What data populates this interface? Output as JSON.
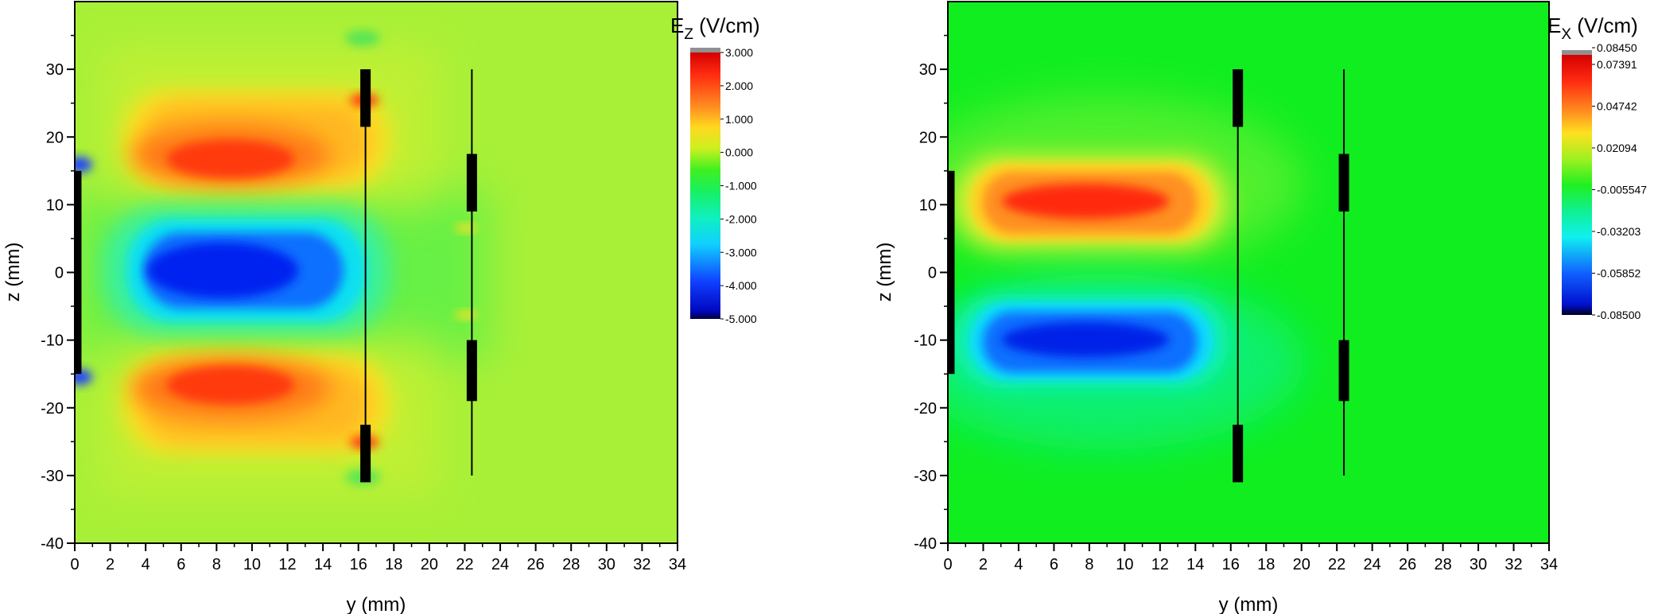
{
  "chart_data": [
    {
      "type": "heatmap",
      "quantity": "Ez",
      "colorbar_title_main": "E",
      "colorbar_title_sub": "Z",
      "colorbar_title_unit": " (V/cm)",
      "xlabel": "y (mm)",
      "ylabel": "z (mm)",
      "xlim": [
        0,
        34
      ],
      "ylim": [
        -40,
        40
      ],
      "x_ticks": [
        "0",
        "2",
        "4",
        "6",
        "8",
        "10",
        "12",
        "14",
        "16",
        "18",
        "20",
        "22",
        "24",
        "26",
        "28",
        "30",
        "32",
        "34"
      ],
      "y_ticks": [
        "-40",
        "-30",
        "-20",
        "-10",
        "0",
        "10",
        "20",
        "30"
      ],
      "colorbar_ticks": [
        "3.000",
        "2.000",
        "1.000",
        "0.000",
        "-1.000",
        "-2.000",
        "-3.000",
        "-4.000",
        "-5.000"
      ],
      "colorbar_range": [
        -5,
        3
      ],
      "field_regions": [
        {
          "kind": "positive-lobe",
          "y_center": 9,
          "z_center": 17,
          "peak": 2.6
        },
        {
          "kind": "negative-lobe",
          "y_center": 9,
          "z_center": 0,
          "peak": -4.6
        },
        {
          "kind": "positive-lobe",
          "y_center": 9,
          "z_center": -17,
          "peak": 2.6
        }
      ],
      "structures": {
        "left_plate": {
          "y": 0.2,
          "z_from": -15,
          "z_to": 15
        },
        "wire_1": {
          "y": 16.4,
          "z_from": -30,
          "z_to": 30
        },
        "wire_1_blocks": [
          {
            "z_from": 21.5,
            "z_to": 30
          },
          {
            "z_from": -31,
            "z_to": -22.5
          }
        ],
        "wire_2": {
          "y": 22.4,
          "z_from": -30,
          "z_to": 30
        },
        "wire_2_blocks": [
          {
            "z_from": 9,
            "z_to": 17.5
          },
          {
            "z_from": -19,
            "z_to": -10
          }
        ]
      }
    },
    {
      "type": "heatmap",
      "quantity": "Ex",
      "colorbar_title_main": "E",
      "colorbar_title_sub": "X",
      "colorbar_title_unit": " (V/cm)",
      "xlabel": "y (mm)",
      "ylabel": "z (mm)",
      "xlim": [
        0,
        34
      ],
      "ylim": [
        -40,
        40
      ],
      "x_ticks": [
        "0",
        "2",
        "4",
        "6",
        "8",
        "10",
        "12",
        "14",
        "16",
        "18",
        "20",
        "22",
        "24",
        "26",
        "28",
        "30",
        "32",
        "34"
      ],
      "y_ticks": [
        "-40",
        "-30",
        "-20",
        "-10",
        "0",
        "10",
        "20",
        "30"
      ],
      "colorbar_ticks": [
        "0.08450",
        "0.07391",
        "0.04742",
        "0.02094",
        "-0.005547",
        "-0.03203",
        "-0.05852",
        "-0.08500"
      ],
      "colorbar_range": [
        -0.085,
        0.0845
      ],
      "field_regions": [
        {
          "kind": "positive-lobe",
          "y_center": 8.5,
          "z_center": 10,
          "peak": 0.08
        },
        {
          "kind": "negative-lobe",
          "y_center": 8.5,
          "z_center": -10,
          "peak": -0.08
        }
      ],
      "structures": {
        "left_plate": {
          "y": 0.2,
          "z_from": -15,
          "z_to": 15
        },
        "wire_1": {
          "y": 16.4,
          "z_from": -30,
          "z_to": 30
        },
        "wire_1_blocks": [
          {
            "z_from": 21.5,
            "z_to": 30
          },
          {
            "z_from": -31,
            "z_to": -22.5
          }
        ],
        "wire_2": {
          "y": 22.4,
          "z_from": -30,
          "z_to": 30
        },
        "wire_2_blocks": [
          {
            "z_from": 9,
            "z_to": 17.5
          },
          {
            "z_from": -19,
            "z_to": -10
          }
        ]
      }
    }
  ]
}
